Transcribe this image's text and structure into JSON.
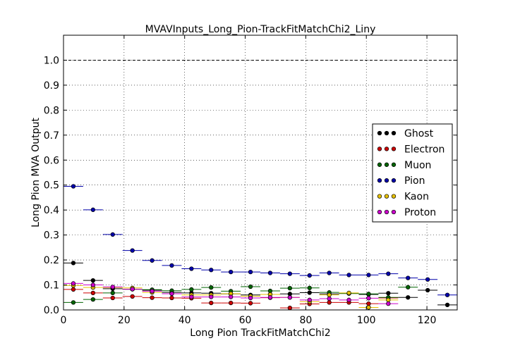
{
  "chart_data": {
    "type": "scatter",
    "title": "MVAVInputs_Long_Pion-TrackFitMatchChi2_Liny",
    "xlabel": "Long Pion TrackFitMatchChi2",
    "ylabel": "Long Pion MVA Output",
    "xlim": [
      0,
      130
    ],
    "ylim": [
      0,
      1.1
    ],
    "xticks": [
      0,
      20,
      40,
      60,
      80,
      100,
      120
    ],
    "xtick_labels": [
      "0",
      "20",
      "40",
      "60",
      "80",
      "100",
      "120"
    ],
    "yticks": [
      0.0,
      0.1,
      0.2,
      0.3,
      0.4,
      0.5,
      0.6,
      0.7,
      0.8,
      0.9,
      1.0
    ],
    "ytick_labels": [
      "0.0",
      "0.1",
      "0.2",
      "0.3",
      "0.4",
      "0.5",
      "0.6",
      "0.7",
      "0.8",
      "0.9",
      "1.0"
    ],
    "reference_line": 1.0,
    "grid": true,
    "legend_position": "center-right",
    "bin_width": 6.5,
    "x": [
      3.25,
      9.75,
      16.25,
      22.75,
      29.25,
      35.75,
      42.25,
      48.75,
      55.25,
      61.75,
      68.25,
      74.75,
      81.25,
      87.75,
      94.25,
      100.75,
      107.25,
      113.75,
      120.25,
      126.75
    ],
    "series": [
      {
        "name": "Ghost",
        "color": "#000000",
        "values": [
          0.188,
          0.118,
          0.085,
          0.083,
          0.079,
          0.07,
          0.068,
          0.067,
          0.064,
          0.06,
          0.062,
          0.064,
          0.069,
          0.064,
          0.066,
          0.062,
          0.067,
          0.05,
          0.079,
          0.02
        ]
      },
      {
        "name": "Electron",
        "color": "#cc0000",
        "values": [
          0.082,
          0.068,
          0.048,
          0.054,
          0.049,
          0.048,
          0.047,
          0.028,
          0.028,
          0.027,
          0.049,
          0.008,
          0.024,
          0.03,
          0.03,
          0.025,
          0.048,
          null,
          null,
          null
        ]
      },
      {
        "name": "Muon",
        "color": "#006400",
        "values": [
          0.03,
          0.042,
          0.068,
          0.083,
          0.081,
          0.077,
          0.082,
          0.09,
          0.075,
          0.093,
          0.076,
          0.087,
          0.088,
          0.07,
          0.066,
          0.064,
          0.05,
          0.091,
          null,
          null
        ]
      },
      {
        "name": "Pion",
        "color": "#0000aa",
        "values": [
          0.495,
          0.401,
          0.302,
          0.238,
          0.198,
          0.178,
          0.165,
          0.16,
          0.152,
          0.152,
          0.148,
          0.145,
          0.138,
          0.148,
          0.14,
          0.14,
          0.145,
          0.128,
          0.122,
          0.06
        ]
      },
      {
        "name": "Kaon",
        "color": "#e6c000",
        "values": [
          0.098,
          0.09,
          0.09,
          0.088,
          0.07,
          0.065,
          0.06,
          0.06,
          0.065,
          0.055,
          0.062,
          0.05,
          0.033,
          0.06,
          0.068,
          0.01,
          0.04,
          null,
          null,
          null
        ]
      },
      {
        "name": "Proton",
        "color": "#cc00cc",
        "values": [
          0.106,
          0.1,
          0.092,
          0.083,
          0.075,
          0.065,
          0.052,
          0.052,
          0.052,
          0.048,
          0.05,
          0.05,
          0.04,
          0.045,
          0.04,
          0.047,
          0.025,
          null,
          null,
          null
        ]
      }
    ]
  }
}
